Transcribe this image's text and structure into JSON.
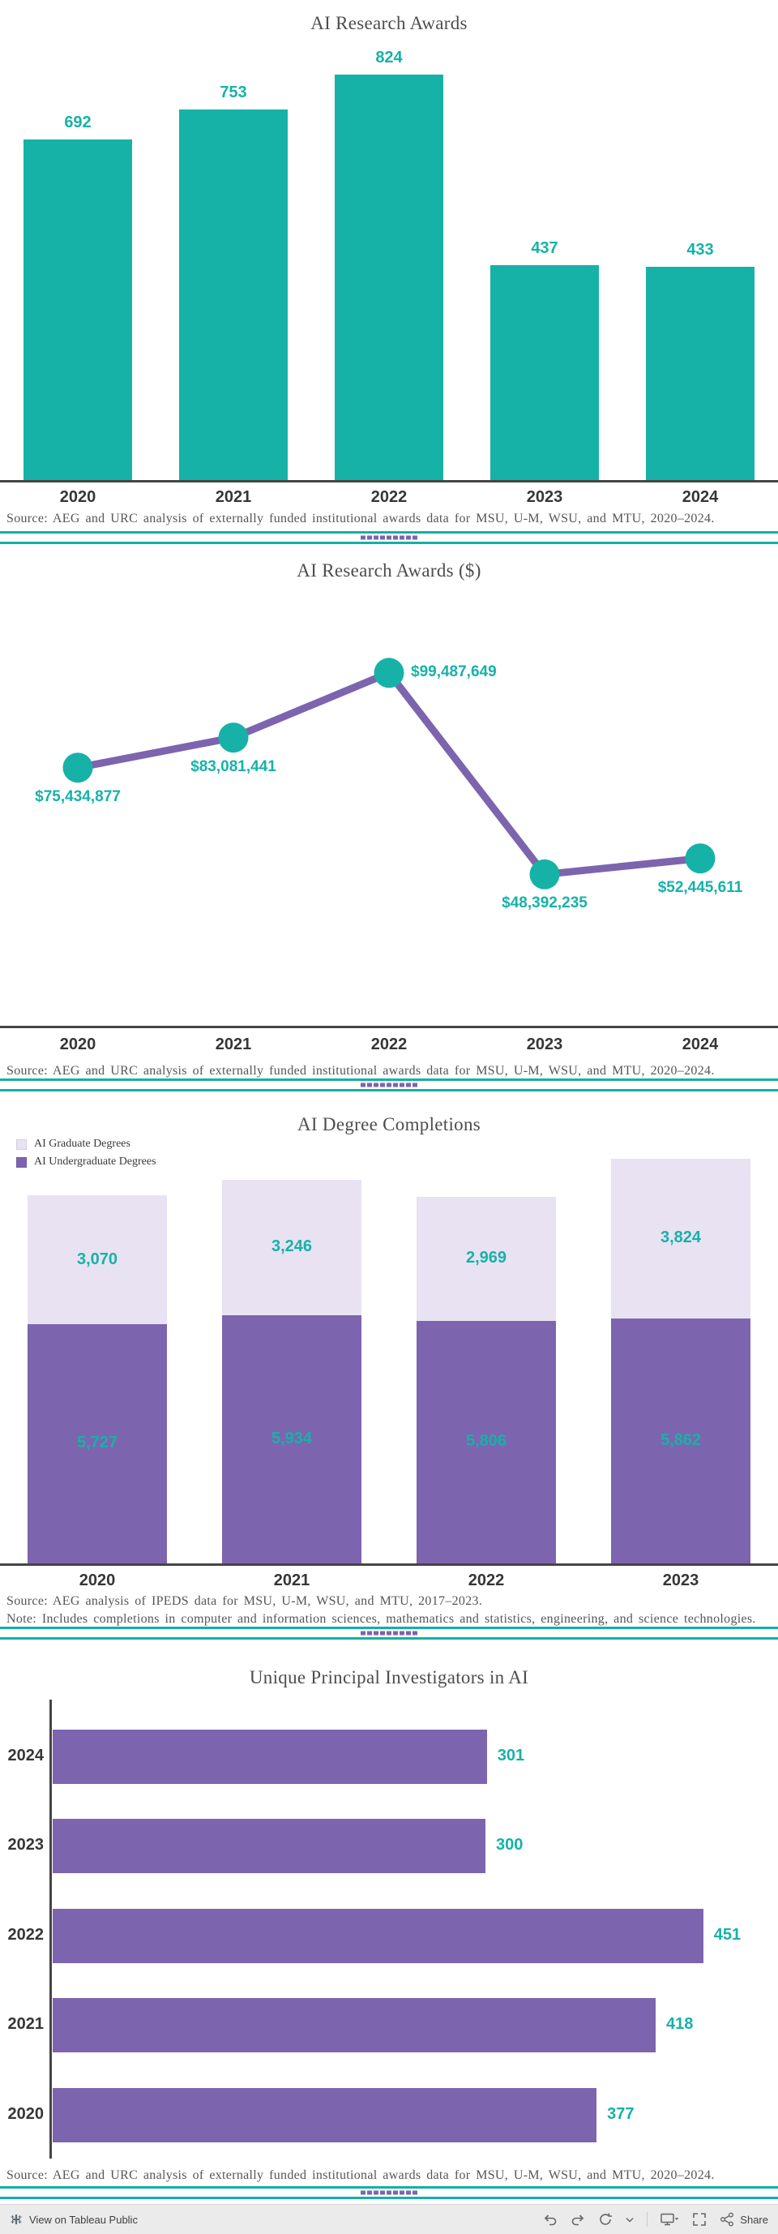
{
  "colors": {
    "teal": "#16b2a8",
    "purple": "#7d64ae",
    "lavender": "#e8e2f2",
    "axis": "#454545",
    "divider_teal": "#14b0a6",
    "label_teal": "#10a79d"
  },
  "chart_data": [
    {
      "type": "bar",
      "title": "AI Research Awards",
      "categories": [
        "2020",
        "2021",
        "2022",
        "2023",
        "2024"
      ],
      "values": [
        692,
        753,
        824,
        437,
        433
      ],
      "labels": [
        "692",
        "753",
        "824",
        "437",
        "433"
      ],
      "ylim": [
        0,
        865
      ],
      "xlabel": "",
      "ylabel": "",
      "source": "Source: AEG and URC analysis of externally funded institutional awards data for MSU, U-M, WSU, and MTU, 2020–2024."
    },
    {
      "type": "line",
      "title": "AI Research Awards ($)",
      "x": [
        "2020",
        "2021",
        "2022",
        "2023",
        "2024"
      ],
      "values": [
        75434877,
        83081441,
        99487649,
        48392235,
        52445611
      ],
      "labels": [
        "$75,434,877",
        "$83,081,441",
        "$99,487,649",
        "$48,392,235",
        "$52,445,611"
      ],
      "label_side": [
        "below",
        "below",
        "right",
        "below",
        "below"
      ],
      "ylim": [
        10000000,
        120000000
      ],
      "xlabel": "",
      "ylabel": "",
      "source": "Source: AEG and URC analysis of externally funded institutional awards data for MSU, U-M, WSU, and MTU, 2020–2024."
    },
    {
      "type": "bar",
      "subtype": "stacked",
      "title": "AI Degree Completions",
      "categories": [
        "2020",
        "2021",
        "2022",
        "2023"
      ],
      "series": [
        {
          "name": "AI Graduate Degrees",
          "color": "#e8e2f2",
          "values": [
            3070,
            3246,
            2969,
            3824
          ],
          "labels": [
            "3,070",
            "3,246",
            "2,969",
            "3,824"
          ]
        },
        {
          "name": "AI Undergraduate Degrees",
          "color": "#7d64ae",
          "values": [
            5727,
            5934,
            5806,
            5862
          ],
          "labels": [
            "5,727",
            "5,934",
            "5,806",
            "5,862"
          ]
        }
      ],
      "ylim": [
        0,
        10200
      ],
      "legend_position": "top-left",
      "source": "Source: AEG analysis of IPEDS data for MSU, U-M, WSU, and MTU, 2017–2023.",
      "note": "Note: Includes completions in computer and information sciences, mathematics and statistics, engineering, and science technologies."
    },
    {
      "type": "bar",
      "orientation": "horizontal",
      "title": "Unique Principal Investigators in AI",
      "categories": [
        "2024",
        "2023",
        "2022",
        "2021",
        "2020"
      ],
      "values": [
        301,
        300,
        451,
        418,
        377
      ],
      "labels": [
        "301",
        "300",
        "451",
        "418",
        "377"
      ],
      "xlim": [
        0,
        500
      ],
      "source": "Source: AEG and URC analysis of externally funded institutional awards data for MSU, U-M, WSU, and MTU, 2020–2024."
    }
  ],
  "footer": {
    "view_label": "View on Tableau Public",
    "share_label": "Share"
  }
}
